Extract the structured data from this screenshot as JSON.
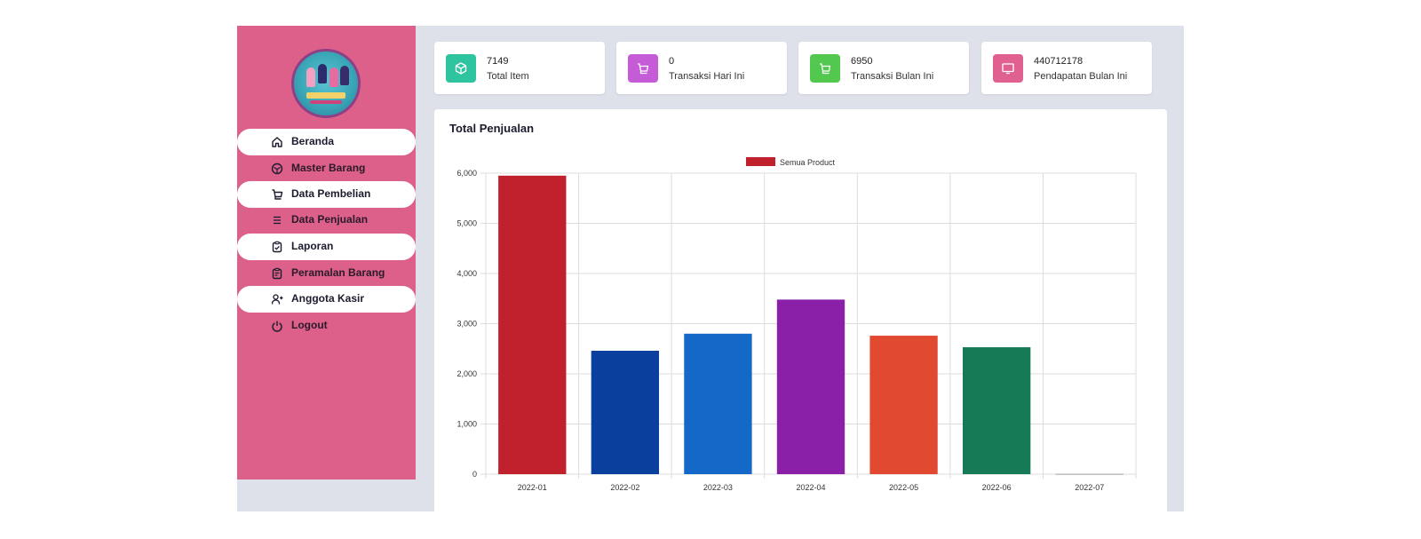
{
  "sidebar": {
    "items": [
      {
        "label": "Beranda",
        "icon": "home-icon"
      },
      {
        "label": "Master Barang",
        "icon": "box-icon"
      },
      {
        "label": "Data Pembelian",
        "icon": "cart-icon"
      },
      {
        "label": "Data Penjualan",
        "icon": "list-icon"
      },
      {
        "label": "Laporan",
        "icon": "clipboard-check-icon"
      },
      {
        "label": "Peramalan Barang",
        "icon": "clipboard-edit-icon"
      },
      {
        "label": "Anggota Kasir",
        "icon": "user-plus-icon"
      },
      {
        "label": "Logout",
        "icon": "power-icon"
      }
    ]
  },
  "stats": [
    {
      "value": "7149",
      "label": "Total Item",
      "color": "#2ec4a0",
      "icon": "box-icon"
    },
    {
      "value": "0",
      "label": "Transaksi Hari Ini",
      "color": "#c55bd6",
      "icon": "cart-icon"
    },
    {
      "value": "6950",
      "label": "Transaksi Bulan Ini",
      "color": "#52c94e",
      "icon": "cart-icon"
    },
    {
      "value": "440712178",
      "label": "Pendapatan Bulan Ini",
      "color": "#e0608f",
      "icon": "monitor-icon"
    }
  ],
  "panel": {
    "title": "Total Penjualan"
  },
  "chart_data": {
    "type": "bar",
    "categories": [
      "2022-01",
      "2022-02",
      "2022-03",
      "2022-04",
      "2022-05",
      "2022-06",
      "2022-07"
    ],
    "series": [
      {
        "name": "Semua Product",
        "values": [
          5950,
          2460,
          2800,
          3480,
          2760,
          2530,
          5
        ]
      }
    ],
    "bar_colors": [
      "#c0212c",
      "#0a3f9e",
      "#1468c8",
      "#8a1fa8",
      "#e14a30",
      "#157a55",
      "#888888"
    ],
    "legend_color": "#c0212c",
    "ylim": [
      0,
      6000
    ],
    "yticks": [
      "0",
      "1,000",
      "2,000",
      "3,000",
      "4,000",
      "5,000",
      "6,000"
    ],
    "grid": true,
    "legend": "top-center"
  }
}
